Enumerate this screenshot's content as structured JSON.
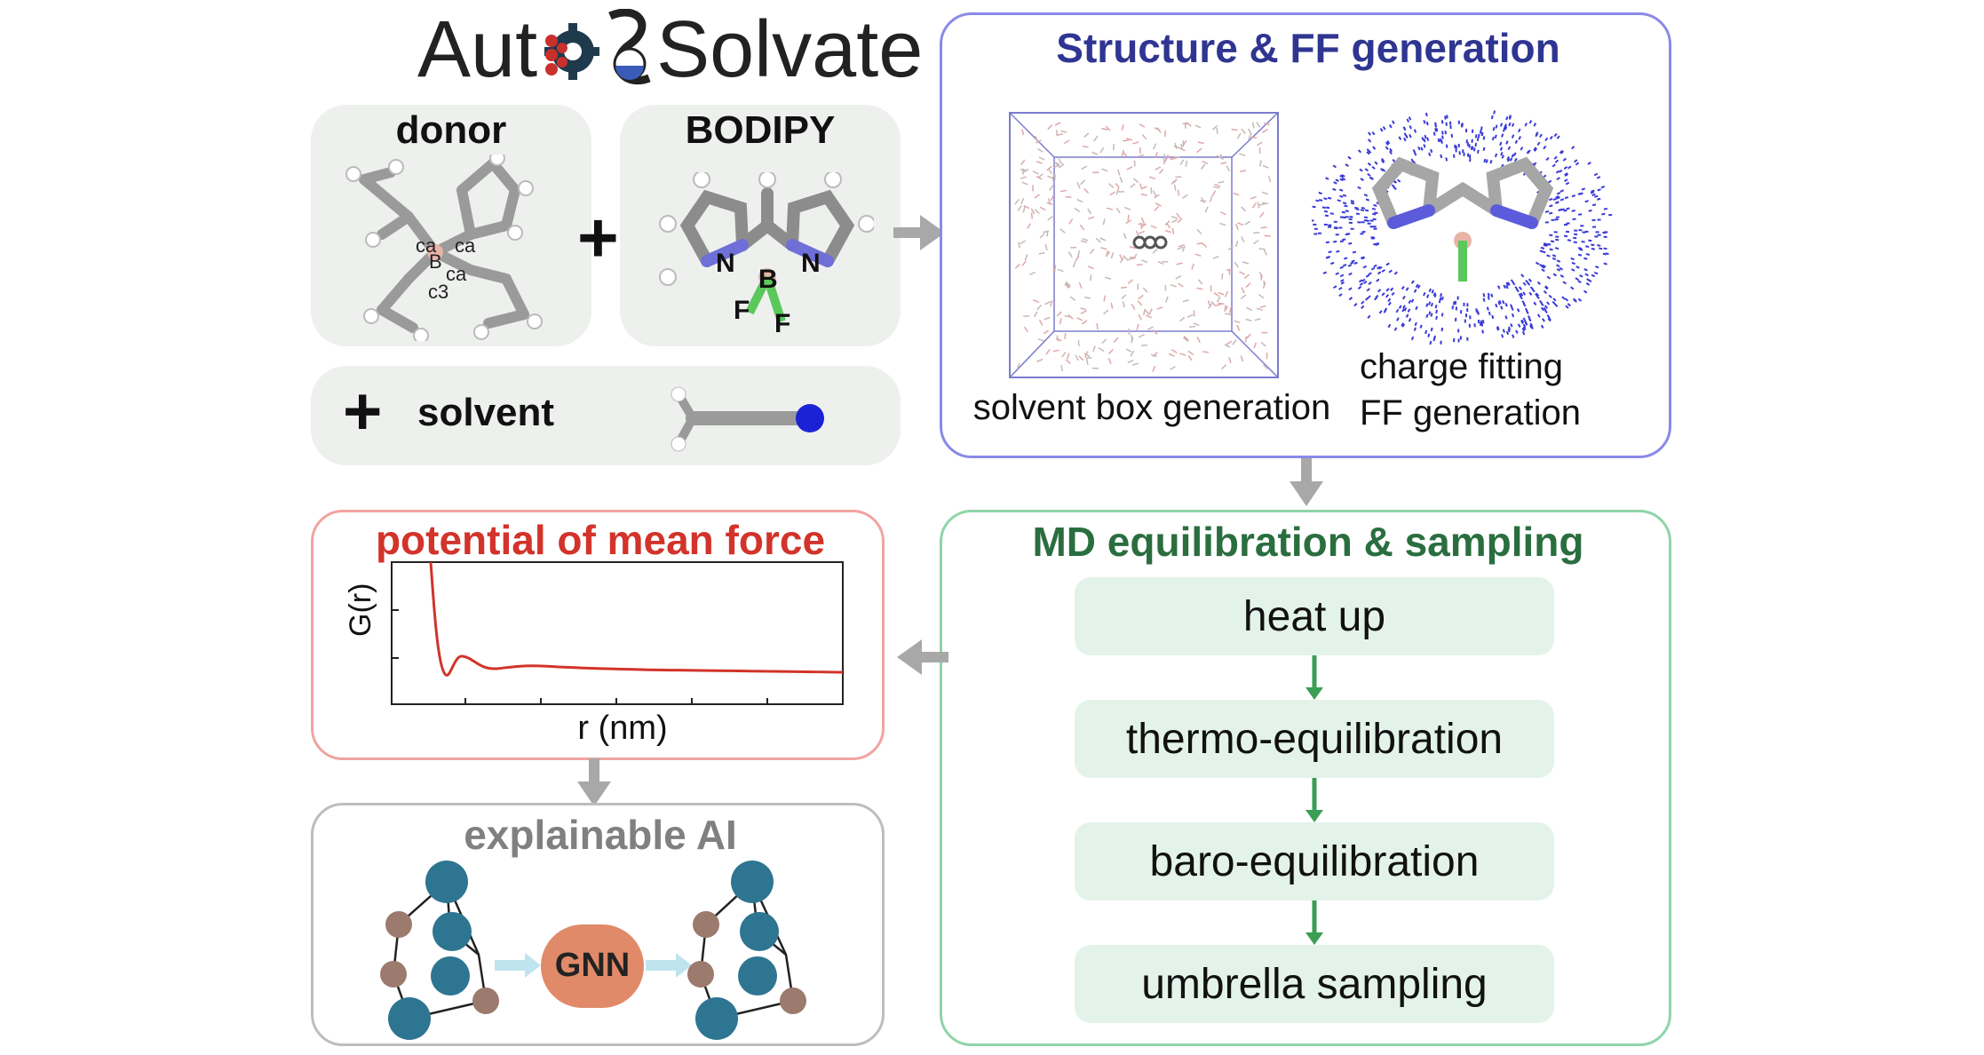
{
  "logo": {
    "text_left": "Aut",
    "text_right": "Solvate"
  },
  "inputs": {
    "donor_label": "donor",
    "donor_atoms": [
      "ca",
      "ca",
      "B",
      "ca",
      "c3"
    ],
    "bodipy_label": "BODIPY",
    "bodipy_atoms": [
      "N",
      "B",
      "N",
      "F",
      "F"
    ],
    "plus": "+",
    "solvent_label": "solvent"
  },
  "structure_ff": {
    "title": "Structure & FF generation",
    "solvent_box_caption": "solvent box generation",
    "charge_caption_line1": "charge fitting",
    "charge_caption_line2": "FF generation"
  },
  "md": {
    "title": "MD equilibration & sampling",
    "steps": [
      "heat up",
      "thermo-equilibration",
      "baro-equilibration",
      "umbrella sampling"
    ]
  },
  "pmf": {
    "title": "potential of mean force",
    "xlabel": "r (nm)",
    "ylabel": "G(r)"
  },
  "xai": {
    "title": "explainable AI",
    "gnn_label": "GNN"
  },
  "colors": {
    "structure_blue": "#2f3591",
    "md_green": "#2a6e3f",
    "pmf_red": "#d2332a",
    "xai_gray": "#808080",
    "node_teal": "#2e7591",
    "node_brown": "#9c7a6e",
    "gnn_orange": "#e08a6a"
  }
}
